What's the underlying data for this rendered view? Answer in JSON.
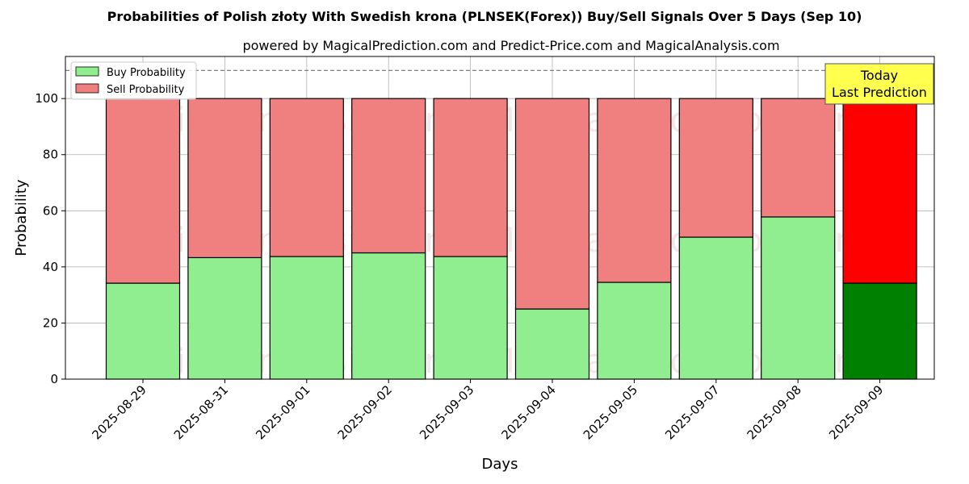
{
  "chart_data": {
    "type": "bar",
    "stacked": true,
    "title": "Probabilities of Polish złoty With Swedish krona (PLNSEK(Forex)) Buy/Sell Signals Over 5 Days (Sep 10)",
    "subtitle": "powered by MagicalPrediction.com and Predict-Price.com and MagicalAnalysis.com",
    "xlabel": "Days",
    "ylabel": "Probability",
    "ylim": [
      0,
      115
    ],
    "yticks": [
      0,
      20,
      40,
      60,
      80,
      100
    ],
    "grid": true,
    "reference_line": 110,
    "categories": [
      "2025-08-29",
      "2025-08-31",
      "2025-09-01",
      "2025-09-02",
      "2025-09-03",
      "2025-09-04",
      "2025-09-05",
      "2025-09-07",
      "2025-09-08",
      "2025-09-09"
    ],
    "series": [
      {
        "name": "Buy Probability",
        "color": "#90ee90",
        "highlight_color": "#008000",
        "values": [
          34.2,
          43.3,
          43.7,
          45.0,
          43.7,
          25.0,
          34.5,
          50.6,
          57.8,
          34.2
        ]
      },
      {
        "name": "Sell Probability",
        "color": "#f08080",
        "highlight_color": "#ff0000",
        "values": [
          65.8,
          56.7,
          56.3,
          55.0,
          56.3,
          75.0,
          65.5,
          49.4,
          42.2,
          65.8
        ]
      }
    ],
    "highlight_index": 9,
    "legend": {
      "position": "top-left"
    },
    "annotation": {
      "line1": "Today",
      "line2": "Last Prediction",
      "color": "#ffff4d"
    },
    "watermarks": [
      "MagicalAnalysis.com",
      "MagicalPrediction.com"
    ]
  }
}
